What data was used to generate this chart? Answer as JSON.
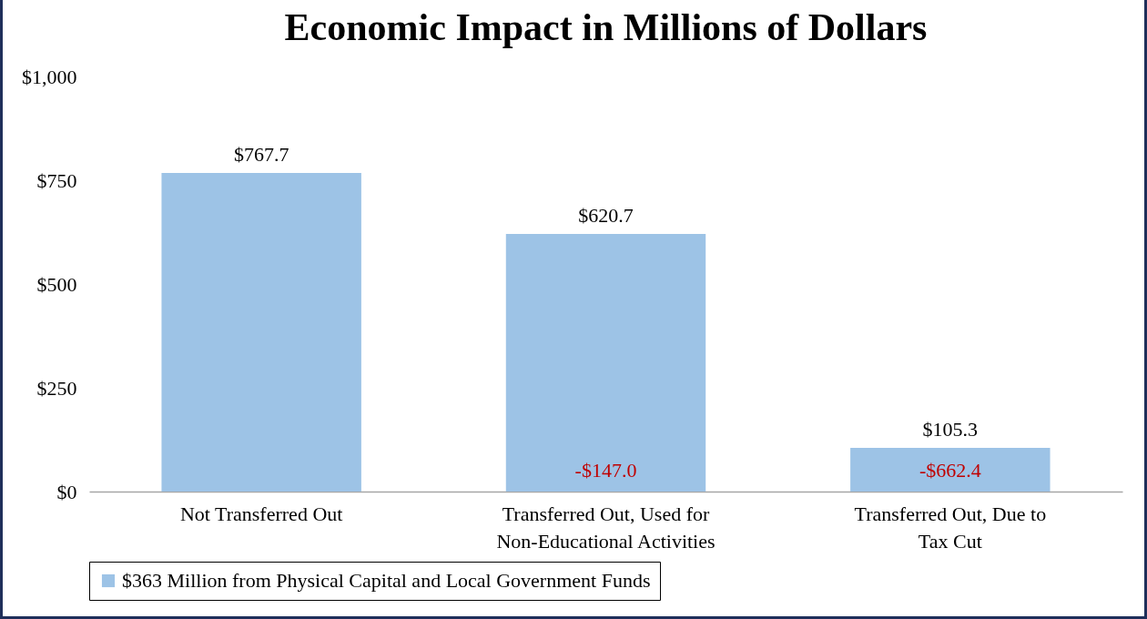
{
  "chart_data": {
    "type": "bar",
    "title": "Economic Impact in Millions of Dollars",
    "categories": [
      "Not Transferred Out",
      "Transferred Out, Used for Non-Educational Activities",
      "Transferred Out, Due to Tax Cut"
    ],
    "series": [
      {
        "name": "$363 Million from Physical Capital and Local Government Funds",
        "color": "#9dc3e6",
        "values": [
          767.7,
          620.7,
          105.3
        ],
        "value_labels": [
          "$767.7",
          "$620.7",
          "$105.3"
        ]
      }
    ],
    "ylim": [
      0,
      1000
    ],
    "yticks": [
      {
        "value": 0,
        "label": "$0"
      },
      {
        "value": 250,
        "label": "$250"
      },
      {
        "value": 500,
        "label": "$500"
      },
      {
        "value": 750,
        "label": "$750"
      },
      {
        "value": 1000,
        "label": "$1,000"
      }
    ],
    "annotations": [
      "-$147.0",
      "-$662.4"
    ],
    "grid": false,
    "legend": "bottom"
  }
}
